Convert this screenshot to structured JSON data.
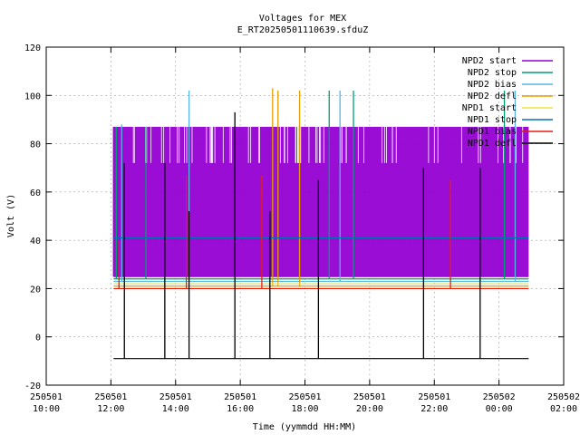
{
  "chart_data": {
    "type": "line",
    "title": "Voltages for MEX",
    "subtitle": "E_RT20250501110639.sfduZ",
    "xlabel": "Time (yymmdd HH:MM)",
    "ylabel": "Volt (V)",
    "ylim": [
      -20,
      120
    ],
    "yticks": [
      -20,
      0,
      20,
      40,
      60,
      80,
      100,
      120
    ],
    "xlim": [
      "2025-05-01 10:00",
      "2025-05-02 02:00"
    ],
    "xticks": [
      {
        "date": "250501",
        "time": "10:00"
      },
      {
        "date": "250501",
        "time": "12:00"
      },
      {
        "date": "250501",
        "time": "14:00"
      },
      {
        "date": "250501",
        "time": "16:00"
      },
      {
        "date": "250501",
        "time": "18:00"
      },
      {
        "date": "250501",
        "time": "20:00"
      },
      {
        "date": "250501",
        "time": "22:00"
      },
      {
        "date": "250502",
        "time": "00:00"
      },
      {
        "date": "250502",
        "time": "02:00"
      }
    ],
    "grid": true,
    "legend_position": "top-right",
    "data_span": [
      "2025-05-01 12:05",
      "2025-05-02 00:55"
    ],
    "series": [
      {
        "name": "NPD2 start",
        "color": "#9400d3",
        "baseline": 25,
        "band": [
          25,
          87
        ],
        "upper": 72
      },
      {
        "name": "NPD2 stop",
        "color": "#009e73",
        "baseline": 24,
        "spikes": [
          {
            "t": "2025-05-01 12:10",
            "v": 87
          },
          {
            "t": "2025-05-01 13:05",
            "v": 87
          },
          {
            "t": "2025-05-01 18:45",
            "v": 102
          },
          {
            "t": "2025-05-01 19:30",
            "v": 102
          },
          {
            "t": "2025-05-02 00:10",
            "v": 102
          }
        ]
      },
      {
        "name": "NPD2 bias",
        "color": "#56b4e9",
        "baseline": 23,
        "spikes": [
          {
            "t": "2025-05-01 12:20",
            "v": 88
          },
          {
            "t": "2025-05-01 14:25",
            "v": 102
          },
          {
            "t": "2025-05-01 19:05",
            "v": 102
          },
          {
            "t": "2025-05-02 00:30",
            "v": 102
          }
        ]
      },
      {
        "name": "NPD2 defl",
        "color": "#e69f00",
        "baseline": 21,
        "spikes": [
          {
            "t": "2025-05-01 17:00",
            "v": 103
          },
          {
            "t": "2025-05-01 17:10",
            "v": 102
          },
          {
            "t": "2025-05-01 17:50",
            "v": 102
          }
        ]
      },
      {
        "name": "NPD1 start",
        "color": "#f0e442",
        "baseline": 22,
        "spikes": []
      },
      {
        "name": "NPD1 stop",
        "color": "#0072b2",
        "baseline": 41,
        "spikes": []
      },
      {
        "name": "NPD1 bias",
        "color": "#e51e10",
        "baseline": 20,
        "spikes": [
          {
            "t": "2025-05-01 12:15",
            "v": 40
          },
          {
            "t": "2025-05-01 14:20",
            "v": 67
          },
          {
            "t": "2025-05-01 16:40",
            "v": 67
          },
          {
            "t": "2025-05-01 22:30",
            "v": 65
          }
        ]
      },
      {
        "name": "NPD1 defl",
        "color": "#000000",
        "baseline": -9,
        "spikes": [
          {
            "t": "2025-05-01 12:25",
            "v": 72
          },
          {
            "t": "2025-05-01 13:40",
            "v": 72
          },
          {
            "t": "2025-05-01 14:25",
            "v": 52
          },
          {
            "t": "2025-05-01 15:50",
            "v": 93
          },
          {
            "t": "2025-05-01 16:55",
            "v": 52
          },
          {
            "t": "2025-05-01 18:25",
            "v": 65
          },
          {
            "t": "2025-05-01 21:40",
            "v": 70
          },
          {
            "t": "2025-05-01 23:25",
            "v": 70
          }
        ]
      }
    ]
  }
}
